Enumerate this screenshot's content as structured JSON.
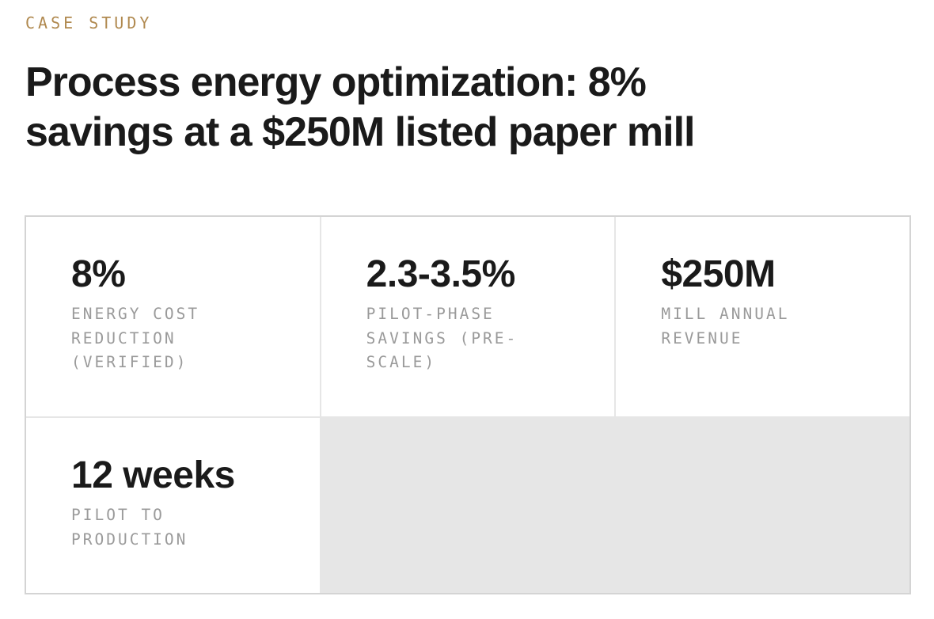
{
  "eyebrow": "CASE STUDY",
  "title": "Process energy optimization: 8% savings at a $250M listed paper mill",
  "stats": [
    {
      "value": "8%",
      "label": "ENERGY COST REDUCTION (VERIFIED)"
    },
    {
      "value": "2.3-3.5%",
      "label": "PILOT-PHASE SAVINGS (PRE-SCALE)"
    },
    {
      "value": "$250M",
      "label": "MILL ANNUAL REVENUE"
    },
    {
      "value": "12 weeks",
      "label": "PILOT TO PRODUCTION"
    }
  ]
}
